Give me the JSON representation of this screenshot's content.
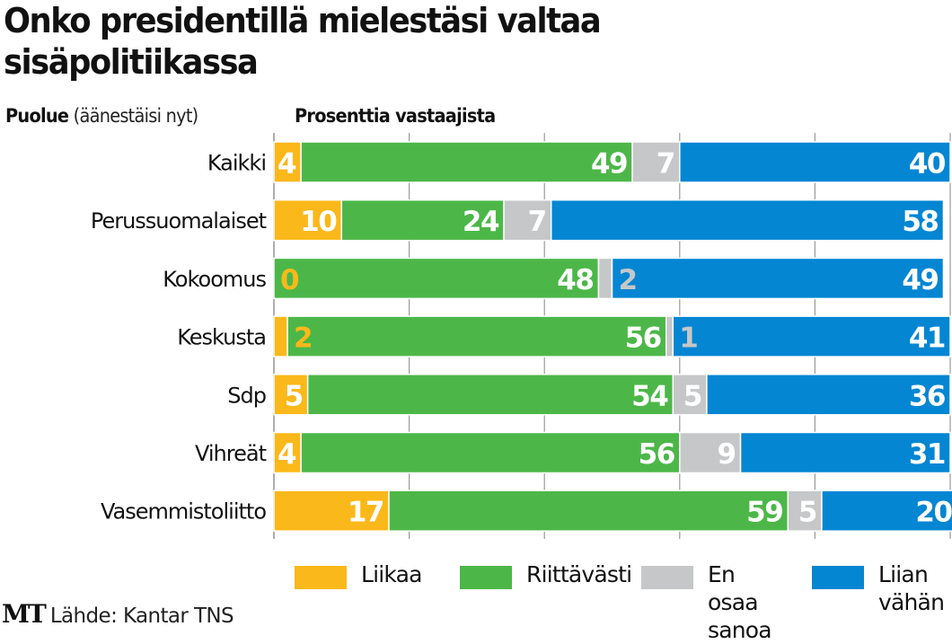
{
  "title": "Onko presidentillä mielestäsi valtaa sisäpolitiikassa",
  "header": {
    "party_label_bold": "Puolue",
    "party_label_light": "(äänestäisi nyt)",
    "percent_label": "Prosenttia vastaajista"
  },
  "colors": {
    "liikaa": "#fbb81a",
    "riittavasti": "#4cb748",
    "en_osaa": "#c6c7c9",
    "liian_vahan": "#0486d3"
  },
  "legend": [
    {
      "key": "liikaa",
      "label": "Liikaa"
    },
    {
      "key": "riittavasti",
      "label": "Riittävästi"
    },
    {
      "key": "en_osaa",
      "label": "En osaa\nsanoa"
    },
    {
      "key": "liian_vahan",
      "label": "Liian\nvähän"
    }
  ],
  "footer": {
    "logo": "MT",
    "source": "Lähde: Kantar TNS"
  },
  "chart_data": {
    "type": "bar",
    "orientation": "horizontal",
    "stacked": true,
    "title": "Onko presidentillä mielestäsi valtaa sisäpolitiikassa",
    "xlabel": "Prosenttia vastaajista",
    "ylabel": "Puolue (äänestäisi nyt)",
    "xlim": [
      0,
      100
    ],
    "grid": true,
    "gridlines_at": [
      0,
      20,
      40,
      60,
      80,
      100
    ],
    "legend_position": "bottom",
    "categories": [
      "Kaikki",
      "Perussuomalaiset",
      "Kokoomus",
      "Keskusta",
      "Sdp",
      "Vihreät",
      "Vasemmistoliitto"
    ],
    "series": [
      {
        "name": "Liikaa",
        "key": "liikaa",
        "values": [
          4,
          10,
          0,
          2,
          5,
          4,
          17
        ]
      },
      {
        "name": "Riittävästi",
        "key": "riittavasti",
        "values": [
          49,
          24,
          48,
          56,
          54,
          56,
          59
        ]
      },
      {
        "name": "En osaa sanoa",
        "key": "en_osaa",
        "values": [
          7,
          7,
          2,
          1,
          5,
          9,
          5
        ]
      },
      {
        "name": "Liian vähän",
        "key": "liian_vahan",
        "values": [
          40,
          58,
          49,
          41,
          36,
          31,
          20
        ]
      }
    ]
  }
}
